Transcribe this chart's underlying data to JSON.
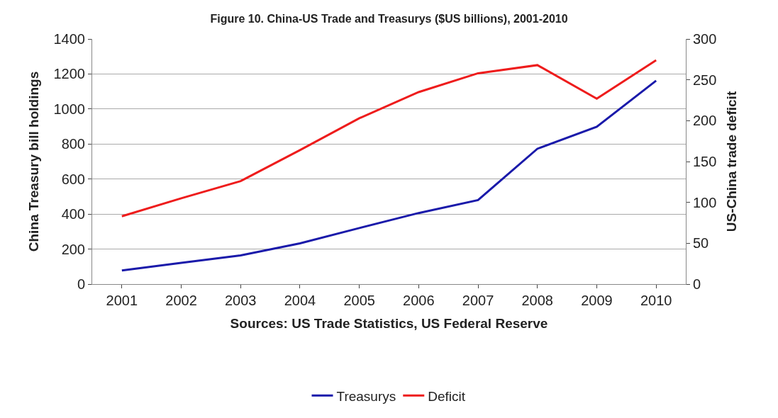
{
  "chart_data": {
    "type": "line",
    "title": "Figure 10. China-US Trade and Treasurys ($US billions), 2001-2010",
    "categories": [
      "2001",
      "2002",
      "2003",
      "2004",
      "2005",
      "2006",
      "2007",
      "2008",
      "2009",
      "2010"
    ],
    "series": [
      {
        "name": "Treasurys",
        "color": "#1a1aaa",
        "values": [
          78,
          121,
          164,
          233,
          320,
          406,
          480,
          773,
          899,
          1162
        ]
      },
      {
        "name": "Deficit",
        "color": "#ee1c1c",
        "axis": "y2",
        "values": [
          83,
          105,
          126,
          164,
          203,
          235,
          258,
          268,
          227,
          274
        ]
      }
    ],
    "ylabel": "China Treasury bill holdings",
    "y2label": "US-China trade deficit",
    "xlabel": "Sources: US Trade Statistics, US Federal Reserve",
    "ylim": [
      0,
      1400
    ],
    "yticks": [
      0,
      200,
      400,
      600,
      800,
      1000,
      1200,
      1400
    ],
    "y2lim": [
      0,
      300
    ],
    "y2ticks": [
      0,
      50,
      100,
      150,
      200,
      250,
      300
    ],
    "grid": "y",
    "legend": "bottom",
    "marker": "none",
    "line_style": "solid"
  }
}
